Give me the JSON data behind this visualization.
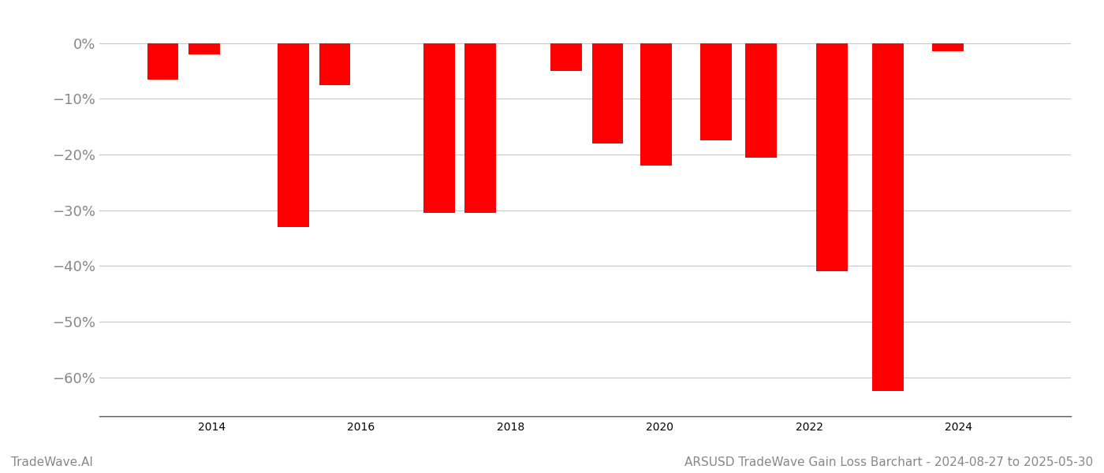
{
  "x_positions": [
    2013.35,
    2013.9,
    2015.1,
    2015.65,
    2017.05,
    2017.6,
    2018.75,
    2019.3,
    2019.95,
    2020.75,
    2021.35,
    2022.3,
    2023.05,
    2023.85
  ],
  "values": [
    -6.5,
    -2.0,
    -33.0,
    -7.5,
    -30.5,
    -30.5,
    -5.0,
    -18.0,
    -22.0,
    -17.5,
    -20.5,
    -41.0,
    -62.5,
    -1.5
  ],
  "bar_color": "#ff0000",
  "bar_width": 0.42,
  "ylim": [
    -67,
    3.5
  ],
  "yticks": [
    0,
    -10,
    -20,
    -30,
    -40,
    -50,
    -60
  ],
  "yticklabels": [
    "0%",
    "−10%",
    "−20%",
    "−30%",
    "−40%",
    "−50%",
    "−60%"
  ],
  "grid_color": "#c8c8c8",
  "background_color": "#ffffff",
  "tick_color": "#888888",
  "spine_color": "#555555",
  "xlim": [
    2012.5,
    2025.5
  ],
  "xticks": [
    2014,
    2016,
    2018,
    2020,
    2022,
    2024
  ],
  "footer_left": "TradeWave.AI",
  "footer_right": "ARSUSD TradeWave Gain Loss Barchart - 2024-08-27 to 2025-05-30",
  "footer_fontsize": 11,
  "tick_fontsize": 13
}
